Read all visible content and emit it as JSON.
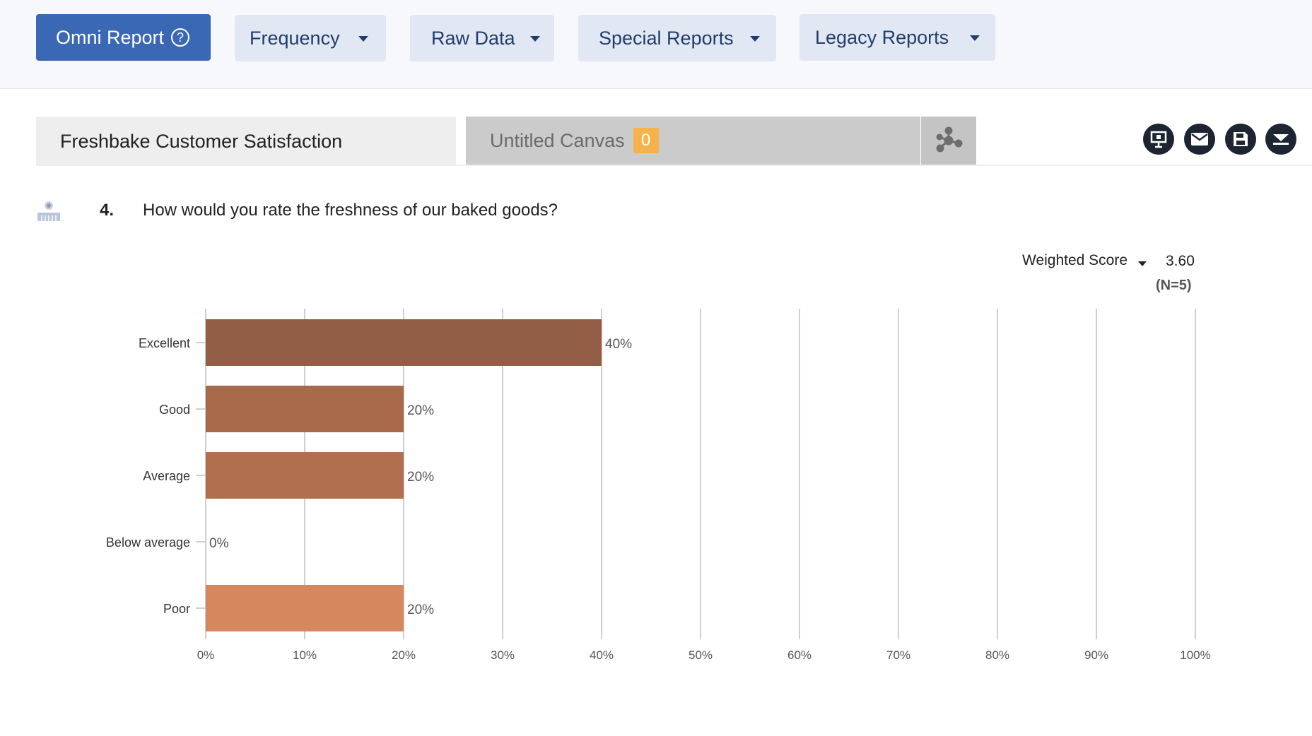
{
  "toolbar": {
    "omni_report": "Omni Report",
    "frequency": "Frequency",
    "raw_data": "Raw Data",
    "special_reports": "Special Reports",
    "legacy_reports": "Legacy Reports"
  },
  "tabs": {
    "survey": "Freshbake Customer Satisfaction",
    "canvas": "Untitled Canvas",
    "canvas_count": "0"
  },
  "actions": [
    "present-icon",
    "mail-icon",
    "save-icon",
    "download-icon"
  ],
  "question": {
    "number": "4.",
    "text": "How would you rate the freshness of our baked goods?"
  },
  "score": {
    "label": "Weighted Score",
    "value": "3.60",
    "n": "(N=5)"
  },
  "chart_data": {
    "type": "bar",
    "orientation": "horizontal",
    "categories": [
      "Excellent",
      "Good",
      "Average",
      "Below average",
      "Poor"
    ],
    "values": [
      40,
      20,
      20,
      0,
      20
    ],
    "value_labels": [
      "40%",
      "20%",
      "20%",
      "0%",
      "20%"
    ],
    "colors": [
      "#925e45",
      "#a86a4b",
      "#b26f4d",
      "#c47a55",
      "#d5875d"
    ],
    "xlim": [
      0,
      100
    ],
    "xticks": [
      0,
      10,
      20,
      30,
      40,
      50,
      60,
      70,
      80,
      90,
      100
    ],
    "xtick_labels": [
      "0%",
      "10%",
      "20%",
      "30%",
      "40%",
      "50%",
      "60%",
      "70%",
      "80%",
      "90%",
      "100%"
    ],
    "grid": true
  }
}
